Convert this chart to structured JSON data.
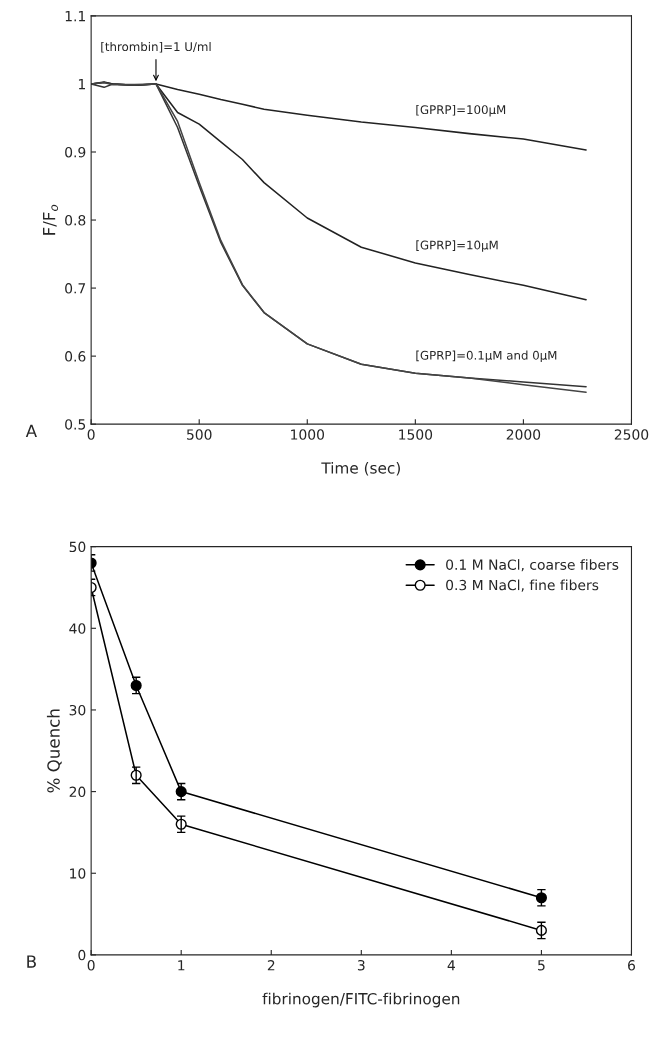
{
  "chart_data": [
    {
      "type": "line",
      "xlabel": "Time (sec)",
      "ylabel": "F/F$_{o}$",
      "xlim": [
        0,
        2500
      ],
      "ylim": [
        0.5,
        1.1
      ],
      "xticks": [
        0,
        500,
        1000,
        1500,
        2000,
        2500
      ],
      "yticks": [
        0.5,
        0.6,
        0.7,
        0.8,
        0.9,
        1,
        1.1
      ],
      "grid": false,
      "legend": false,
      "marker": "none",
      "line_style": "solid",
      "x": [
        0,
        60,
        100,
        200,
        300,
        400,
        500,
        600,
        700,
        800,
        1000,
        1250,
        1500,
        1750,
        2000,
        2290
      ],
      "series": [
        {
          "name": "[GPRP]=100μM",
          "color": "#222222",
          "values": [
            1.0,
            1.003,
            1.0,
            0.998,
            1.0,
            0.992,
            0.985,
            0.977,
            0.97,
            0.963,
            0.954,
            0.944,
            0.936,
            0.927,
            0.919,
            0.903
          ]
        },
        {
          "name": "[GPRP]=10μM",
          "color": "#222222",
          "values": [
            1.0,
            1.002,
            1.0,
            0.998,
            1.0,
            0.958,
            0.941,
            0.915,
            0.889,
            0.855,
            0.803,
            0.76,
            0.737,
            0.72,
            0.704,
            0.683
          ]
        },
        {
          "name": "[GPRP]=0.1μM and 0μM",
          "color": "#333333",
          "values": [
            1.0,
            0.995,
            1.0,
            0.998,
            1.0,
            0.936,
            0.85,
            0.767,
            0.704,
            0.664,
            0.618,
            0.588,
            0.575,
            0.568,
            0.562,
            0.555
          ]
        },
        {
          "color": "#444444",
          "values": [
            1.0,
            1.002,
            0.999,
            0.999,
            1.0,
            0.945,
            0.855,
            0.77,
            0.705,
            0.664,
            0.618,
            0.588,
            0.575,
            0.568,
            0.558,
            0.547
          ]
        }
      ],
      "annotations": [
        {
          "text": "[thrombin]=1 U/ml",
          "x": 300,
          "y": 1.0
        },
        "A"
      ]
    },
    {
      "type": "line",
      "xlabel": "fibrinogen/FITC-fibrinogen",
      "ylabel": "% Quench",
      "xlim": [
        0,
        6
      ],
      "ylim": [
        0,
        50
      ],
      "xticks": [
        0,
        1,
        2,
        3,
        4,
        5,
        6
      ],
      "yticks": [
        0,
        10,
        20,
        30,
        40,
        50
      ],
      "grid": false,
      "legend": "top right",
      "line_style": "solid",
      "x": [
        0,
        0.5,
        1,
        5
      ],
      "series": [
        {
          "name": "0.1 M NaCl, coarse fibers",
          "color": "#000000",
          "marker": "circle",
          "values": [
            48,
            33,
            20,
            7
          ],
          "errors": [
            1,
            1,
            1,
            1
          ]
        },
        {
          "name": "0.3 M NaCl, fine fibers",
          "color": "#000000",
          "marker": "circle",
          "values": [
            45,
            22,
            16,
            3
          ],
          "errors": [
            1,
            1,
            1,
            1
          ]
        }
      ],
      "annotations": [
        "B"
      ]
    }
  ]
}
